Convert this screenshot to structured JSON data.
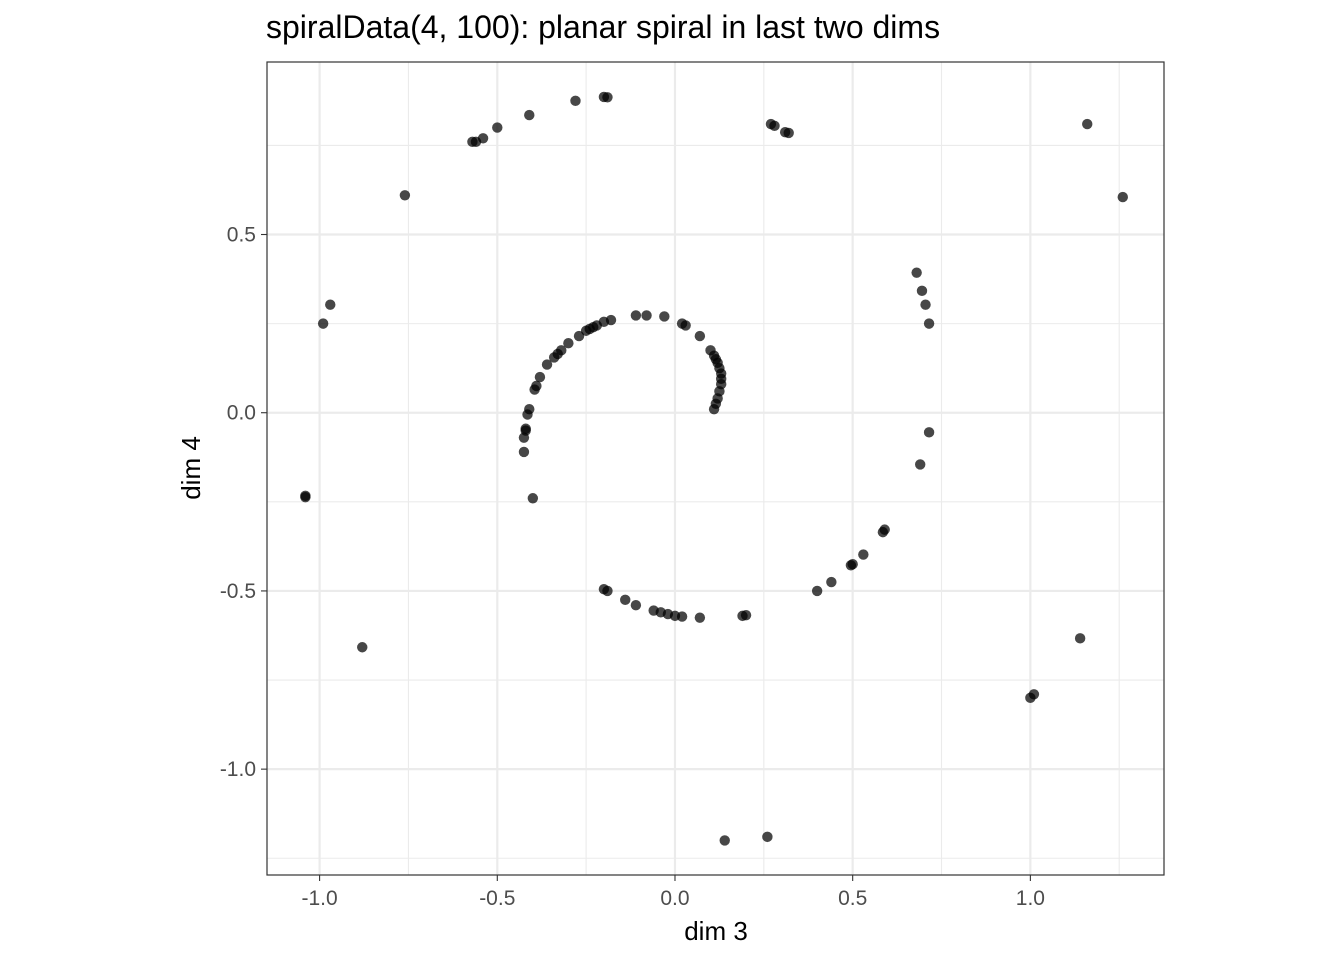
{
  "chart_data": {
    "type": "scatter",
    "title": "spiralData(4, 100): planar spiral in last two dims",
    "xlabel": "dim 3",
    "ylabel": "dim 4",
    "xlim": [
      -1.148,
      1.376
    ],
    "ylim": [
      -1.297,
      0.984
    ],
    "xticks": [
      -1.0,
      -0.5,
      0.0,
      0.5,
      1.0
    ],
    "xtick_labels": [
      "-1.0",
      "-0.5",
      "0.0",
      "0.5",
      "1.0"
    ],
    "yticks": [
      -1.0,
      -0.5,
      0.0,
      0.5
    ],
    "ytick_labels": [
      "-1.0",
      "-0.5",
      "0.0",
      "0.5"
    ],
    "grid": true,
    "point_color": "#000000",
    "series": [
      {
        "points": [
          [
            0.02,
            0.25
          ],
          [
            0.03,
            0.245
          ],
          [
            0.07,
            0.215
          ],
          [
            0.1,
            0.175
          ],
          [
            0.11,
            0.16
          ],
          [
            0.115,
            0.15
          ],
          [
            0.12,
            0.14
          ],
          [
            0.125,
            0.125
          ],
          [
            0.13,
            0.11
          ],
          [
            0.13,
            0.095
          ],
          [
            0.13,
            0.08
          ],
          [
            0.125,
            0.06
          ],
          [
            0.12,
            0.04
          ],
          [
            0.115,
            0.025
          ],
          [
            0.11,
            0.01
          ],
          [
            -0.03,
            0.27
          ],
          [
            -0.08,
            0.273
          ],
          [
            -0.11,
            0.273
          ],
          [
            -0.18,
            0.26
          ],
          [
            -0.2,
            0.255
          ],
          [
            -0.22,
            0.245
          ],
          [
            -0.23,
            0.24
          ],
          [
            -0.24,
            0.235
          ],
          [
            -0.25,
            0.23
          ],
          [
            -0.27,
            0.215
          ],
          [
            -0.3,
            0.195
          ],
          [
            -0.32,
            0.175
          ],
          [
            -0.33,
            0.165
          ],
          [
            -0.34,
            0.155
          ],
          [
            -0.36,
            0.135
          ],
          [
            -0.38,
            0.1
          ],
          [
            -0.39,
            0.075
          ],
          [
            -0.395,
            0.065
          ],
          [
            -0.41,
            0.01
          ],
          [
            -0.415,
            -0.005
          ],
          [
            -0.42,
            -0.045
          ],
          [
            -0.42,
            -0.05
          ],
          [
            -0.425,
            -0.07
          ],
          [
            -0.425,
            -0.11
          ],
          [
            -0.4,
            -0.24
          ],
          [
            -0.2,
            -0.495
          ],
          [
            -0.19,
            -0.5
          ],
          [
            -0.14,
            -0.525
          ],
          [
            -0.11,
            -0.54
          ],
          [
            -0.06,
            -0.555
          ],
          [
            -0.04,
            -0.56
          ],
          [
            -0.02,
            -0.565
          ],
          [
            0.0,
            -0.57
          ],
          [
            0.02,
            -0.572
          ],
          [
            0.07,
            -0.575
          ],
          [
            0.19,
            -0.57
          ],
          [
            0.2,
            -0.568
          ],
          [
            0.4,
            -0.5
          ],
          [
            0.44,
            -0.475
          ],
          [
            0.495,
            -0.428
          ],
          [
            0.5,
            -0.425
          ],
          [
            0.53,
            -0.398
          ],
          [
            0.585,
            -0.335
          ],
          [
            0.59,
            -0.328
          ],
          [
            0.69,
            -0.145
          ],
          [
            0.715,
            -0.055
          ],
          [
            0.715,
            0.25
          ],
          [
            0.705,
            0.303
          ],
          [
            0.695,
            0.342
          ],
          [
            0.68,
            0.393
          ],
          [
            1.16,
            0.81
          ],
          [
            1.26,
            0.605
          ],
          [
            1.14,
            -0.633
          ],
          [
            1.01,
            -0.79
          ],
          [
            1.0,
            -0.8
          ],
          [
            0.26,
            -1.19
          ],
          [
            0.14,
            -1.2
          ],
          [
            -0.88,
            -0.658
          ],
          [
            -1.04,
            -0.233
          ],
          [
            -1.04,
            -0.237
          ],
          [
            -0.97,
            0.303
          ],
          [
            -0.99,
            0.25
          ],
          [
            -0.76,
            0.61
          ],
          [
            -0.56,
            0.76
          ],
          [
            -0.57,
            0.76
          ],
          [
            -0.54,
            0.77
          ],
          [
            -0.5,
            0.8
          ],
          [
            -0.41,
            0.835
          ],
          [
            -0.28,
            0.875
          ],
          [
            -0.19,
            0.885
          ],
          [
            -0.2,
            0.886
          ],
          [
            0.27,
            0.81
          ],
          [
            0.28,
            0.805
          ],
          [
            0.31,
            0.787
          ],
          [
            0.32,
            0.785
          ]
        ]
      }
    ]
  }
}
